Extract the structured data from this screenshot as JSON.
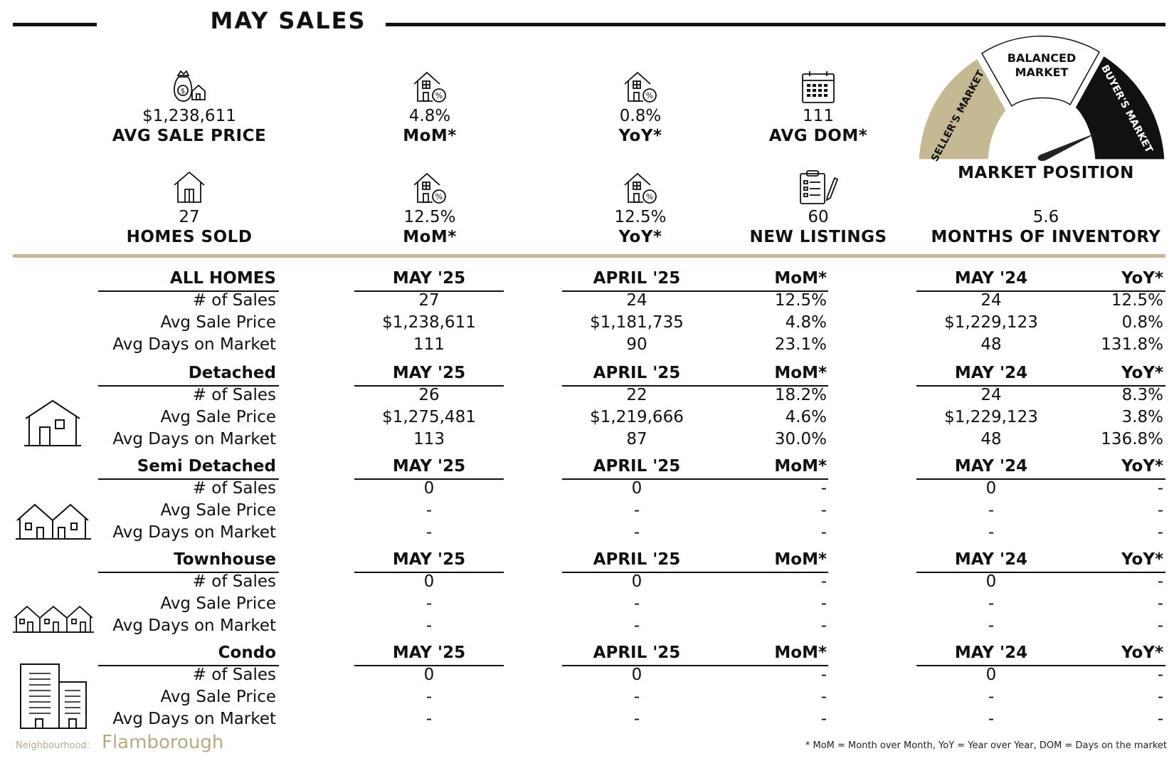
{
  "header": {
    "title": "MAY SALES"
  },
  "stats": {
    "avg_sale_price": {
      "value": "$1,238,611",
      "label": "AVG SALE PRICE"
    },
    "price_mom": {
      "value": "4.8%",
      "label": "MoM*"
    },
    "price_yoy": {
      "value": "0.8%",
      "label": "YoY*"
    },
    "avg_dom": {
      "value": "111",
      "label": "AVG DOM*"
    },
    "homes_sold": {
      "value": "27",
      "label": "HOMES SOLD"
    },
    "sold_mom": {
      "value": "12.5%",
      "label": "MoM*"
    },
    "sold_yoy": {
      "value": "12.5%",
      "label": "YoY*"
    },
    "new_listings": {
      "value": "60",
      "label": "NEW LISTINGS"
    },
    "months_inventory": {
      "value": "5.6",
      "label": "MONTHS OF INVENTORY"
    }
  },
  "gauge": {
    "title": "MARKET POSITION",
    "sellers": "SELLER'S MARKET",
    "balanced_line1": "BALANCED",
    "balanced_line2": "MARKET",
    "buyers": "BUYER'S MARKET",
    "colors": {
      "sellers": "#c5b994",
      "balanced": "#ffffff",
      "buyers": "#111111",
      "needle": "#222222"
    }
  },
  "tables": [
    {
      "category": "ALL HOMES",
      "columns": [
        "MAY '25",
        "APRIL '25",
        "MoM*",
        "MAY '24",
        "YoY*"
      ],
      "rows": [
        {
          "label": "# of Sales",
          "values": [
            "27",
            "24",
            "12.5%",
            "24",
            "12.5%"
          ]
        },
        {
          "label": "Avg Sale Price",
          "values": [
            "$1,238,611",
            "$1,181,735",
            "4.8%",
            "$1,229,123",
            "0.8%"
          ]
        },
        {
          "label": "Avg Days on Market",
          "values": [
            "111",
            "90",
            "23.1%",
            "48",
            "131.8%"
          ]
        }
      ]
    },
    {
      "category": "Detached",
      "icon": "detached-house-icon",
      "columns": [
        "MAY '25",
        "APRIL '25",
        "MoM*",
        "MAY '24",
        "YoY*"
      ],
      "rows": [
        {
          "label": "# of Sales",
          "values": [
            "26",
            "22",
            "18.2%",
            "24",
            "8.3%"
          ]
        },
        {
          "label": "Avg Sale Price",
          "values": [
            "$1,275,481",
            "$1,219,666",
            "4.6%",
            "$1,229,123",
            "3.8%"
          ]
        },
        {
          "label": "Avg Days on Market",
          "values": [
            "113",
            "87",
            "30.0%",
            "48",
            "136.8%"
          ]
        }
      ]
    },
    {
      "category": "Semi Detached",
      "icon": "semi-detached-icon",
      "columns": [
        "MAY '25",
        "APRIL '25",
        "MoM*",
        "MAY '24",
        "YoY*"
      ],
      "rows": [
        {
          "label": "# of Sales",
          "values": [
            "0",
            "0",
            "-",
            "0",
            "-"
          ]
        },
        {
          "label": "Avg Sale Price",
          "values": [
            "-",
            "-",
            "-",
            "-",
            "-"
          ]
        },
        {
          "label": "Avg Days on Market",
          "values": [
            "-",
            "-",
            "-",
            "-",
            "-"
          ]
        }
      ]
    },
    {
      "category": "Townhouse",
      "icon": "townhouse-icon",
      "columns": [
        "MAY '25",
        "APRIL '25",
        "MoM*",
        "MAY '24",
        "YoY*"
      ],
      "rows": [
        {
          "label": "# of Sales",
          "values": [
            "0",
            "0",
            "-",
            "0",
            "-"
          ]
        },
        {
          "label": "Avg Sale Price",
          "values": [
            "-",
            "-",
            "-",
            "-",
            "-"
          ]
        },
        {
          "label": "Avg Days on Market",
          "values": [
            "-",
            "-",
            "-",
            "-",
            "-"
          ]
        }
      ]
    },
    {
      "category": "Condo",
      "icon": "condo-building-icon",
      "columns": [
        "MAY '25",
        "APRIL '25",
        "MoM*",
        "MAY '24",
        "YoY*"
      ],
      "rows": [
        {
          "label": "# of Sales",
          "values": [
            "0",
            "0",
            "-",
            "0",
            "-"
          ]
        },
        {
          "label": "Avg Sale Price",
          "values": [
            "-",
            "-",
            "-",
            "-",
            "-"
          ]
        },
        {
          "label": "Avg Days on Market",
          "values": [
            "-",
            "-",
            "-",
            "-",
            "-"
          ]
        }
      ]
    }
  ],
  "footer": {
    "neighbourhood_label": "Neighbourhood:",
    "neighbourhood_name": "Flamborough",
    "note": "* MoM = Month over Month, YoY = Year over Year, DOM = Days on the market"
  }
}
